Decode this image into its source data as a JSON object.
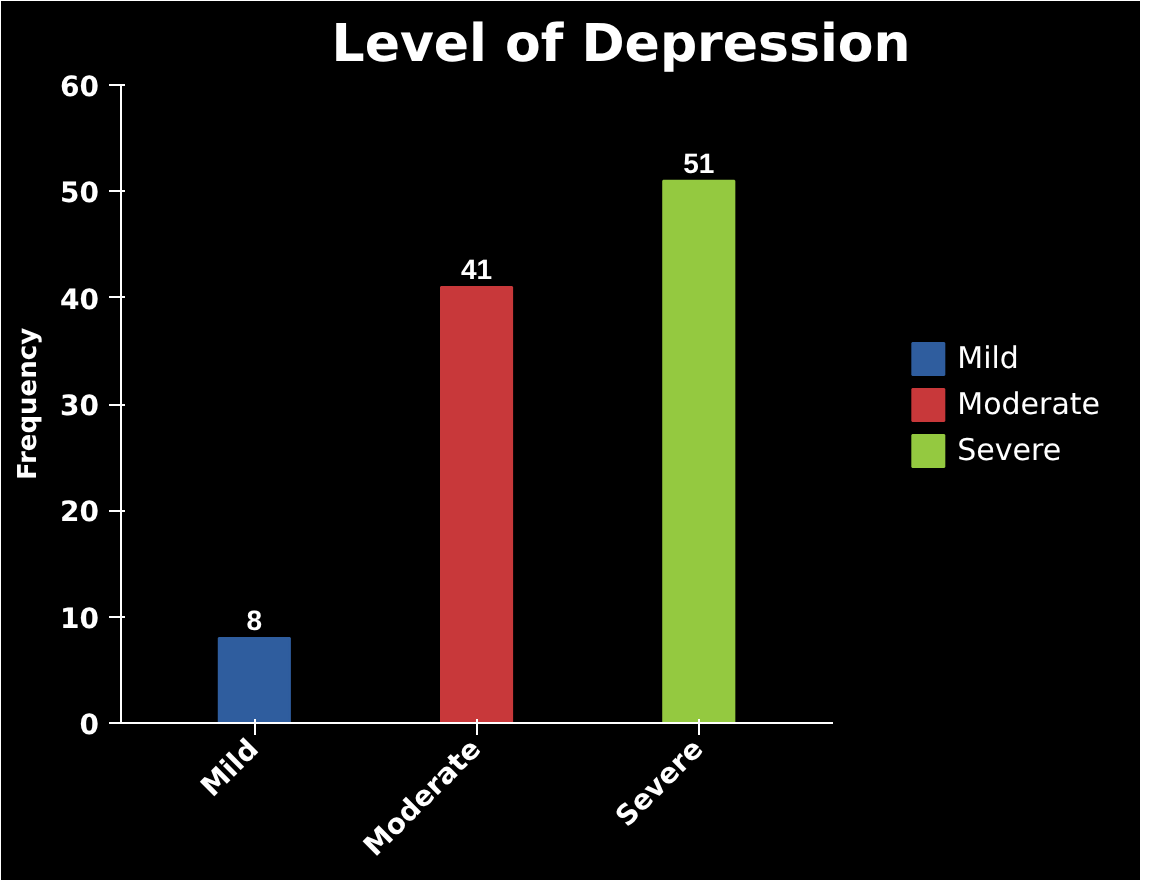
{
  "chart_data": {
    "type": "bar",
    "title": "Level of Depression",
    "ylabel": "Frequency",
    "categories": [
      "Mild",
      "Moderate",
      "Severe"
    ],
    "series": [
      {
        "name": "Mild",
        "color": "#2f5d9e",
        "values": [
          8,
          null,
          null
        ]
      },
      {
        "name": "Moderate",
        "color": "#c8383a",
        "values": [
          null,
          41,
          null
        ]
      },
      {
        "name": "Severe",
        "color": "#94c940",
        "values": [
          null,
          null,
          51
        ]
      }
    ],
    "stacked": true,
    "ylim": [
      0,
      60
    ],
    "yticks": [
      0,
      10,
      20,
      30,
      40,
      50,
      60
    ],
    "grid": false,
    "legend": "right",
    "data_labels": true
  }
}
